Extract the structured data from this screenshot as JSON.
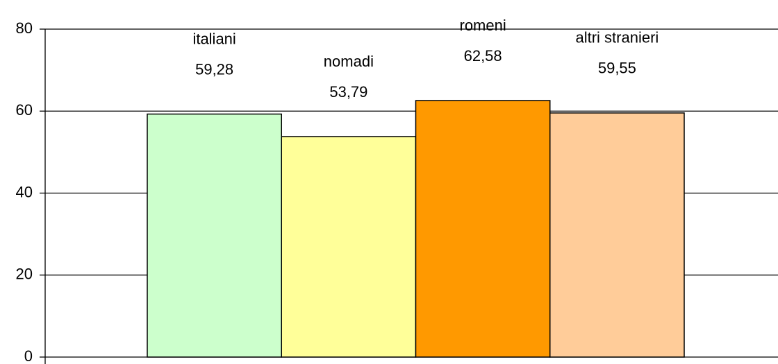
{
  "chart_data": {
    "type": "bar",
    "categories": [
      "italiani",
      "nomadi",
      "romeni",
      "altri stranieri"
    ],
    "values": [
      59.28,
      53.79,
      62.58,
      59.55
    ],
    "value_labels": [
      "59,28",
      "53,79",
      "62,58",
      "59,55"
    ],
    "colors": [
      "#ccffcc",
      "#ffff99",
      "#ff9900",
      "#ffcc99"
    ],
    "ylim": [
      0,
      80
    ],
    "yticks": [
      0,
      20,
      40,
      60,
      80
    ],
    "grid": true
  }
}
